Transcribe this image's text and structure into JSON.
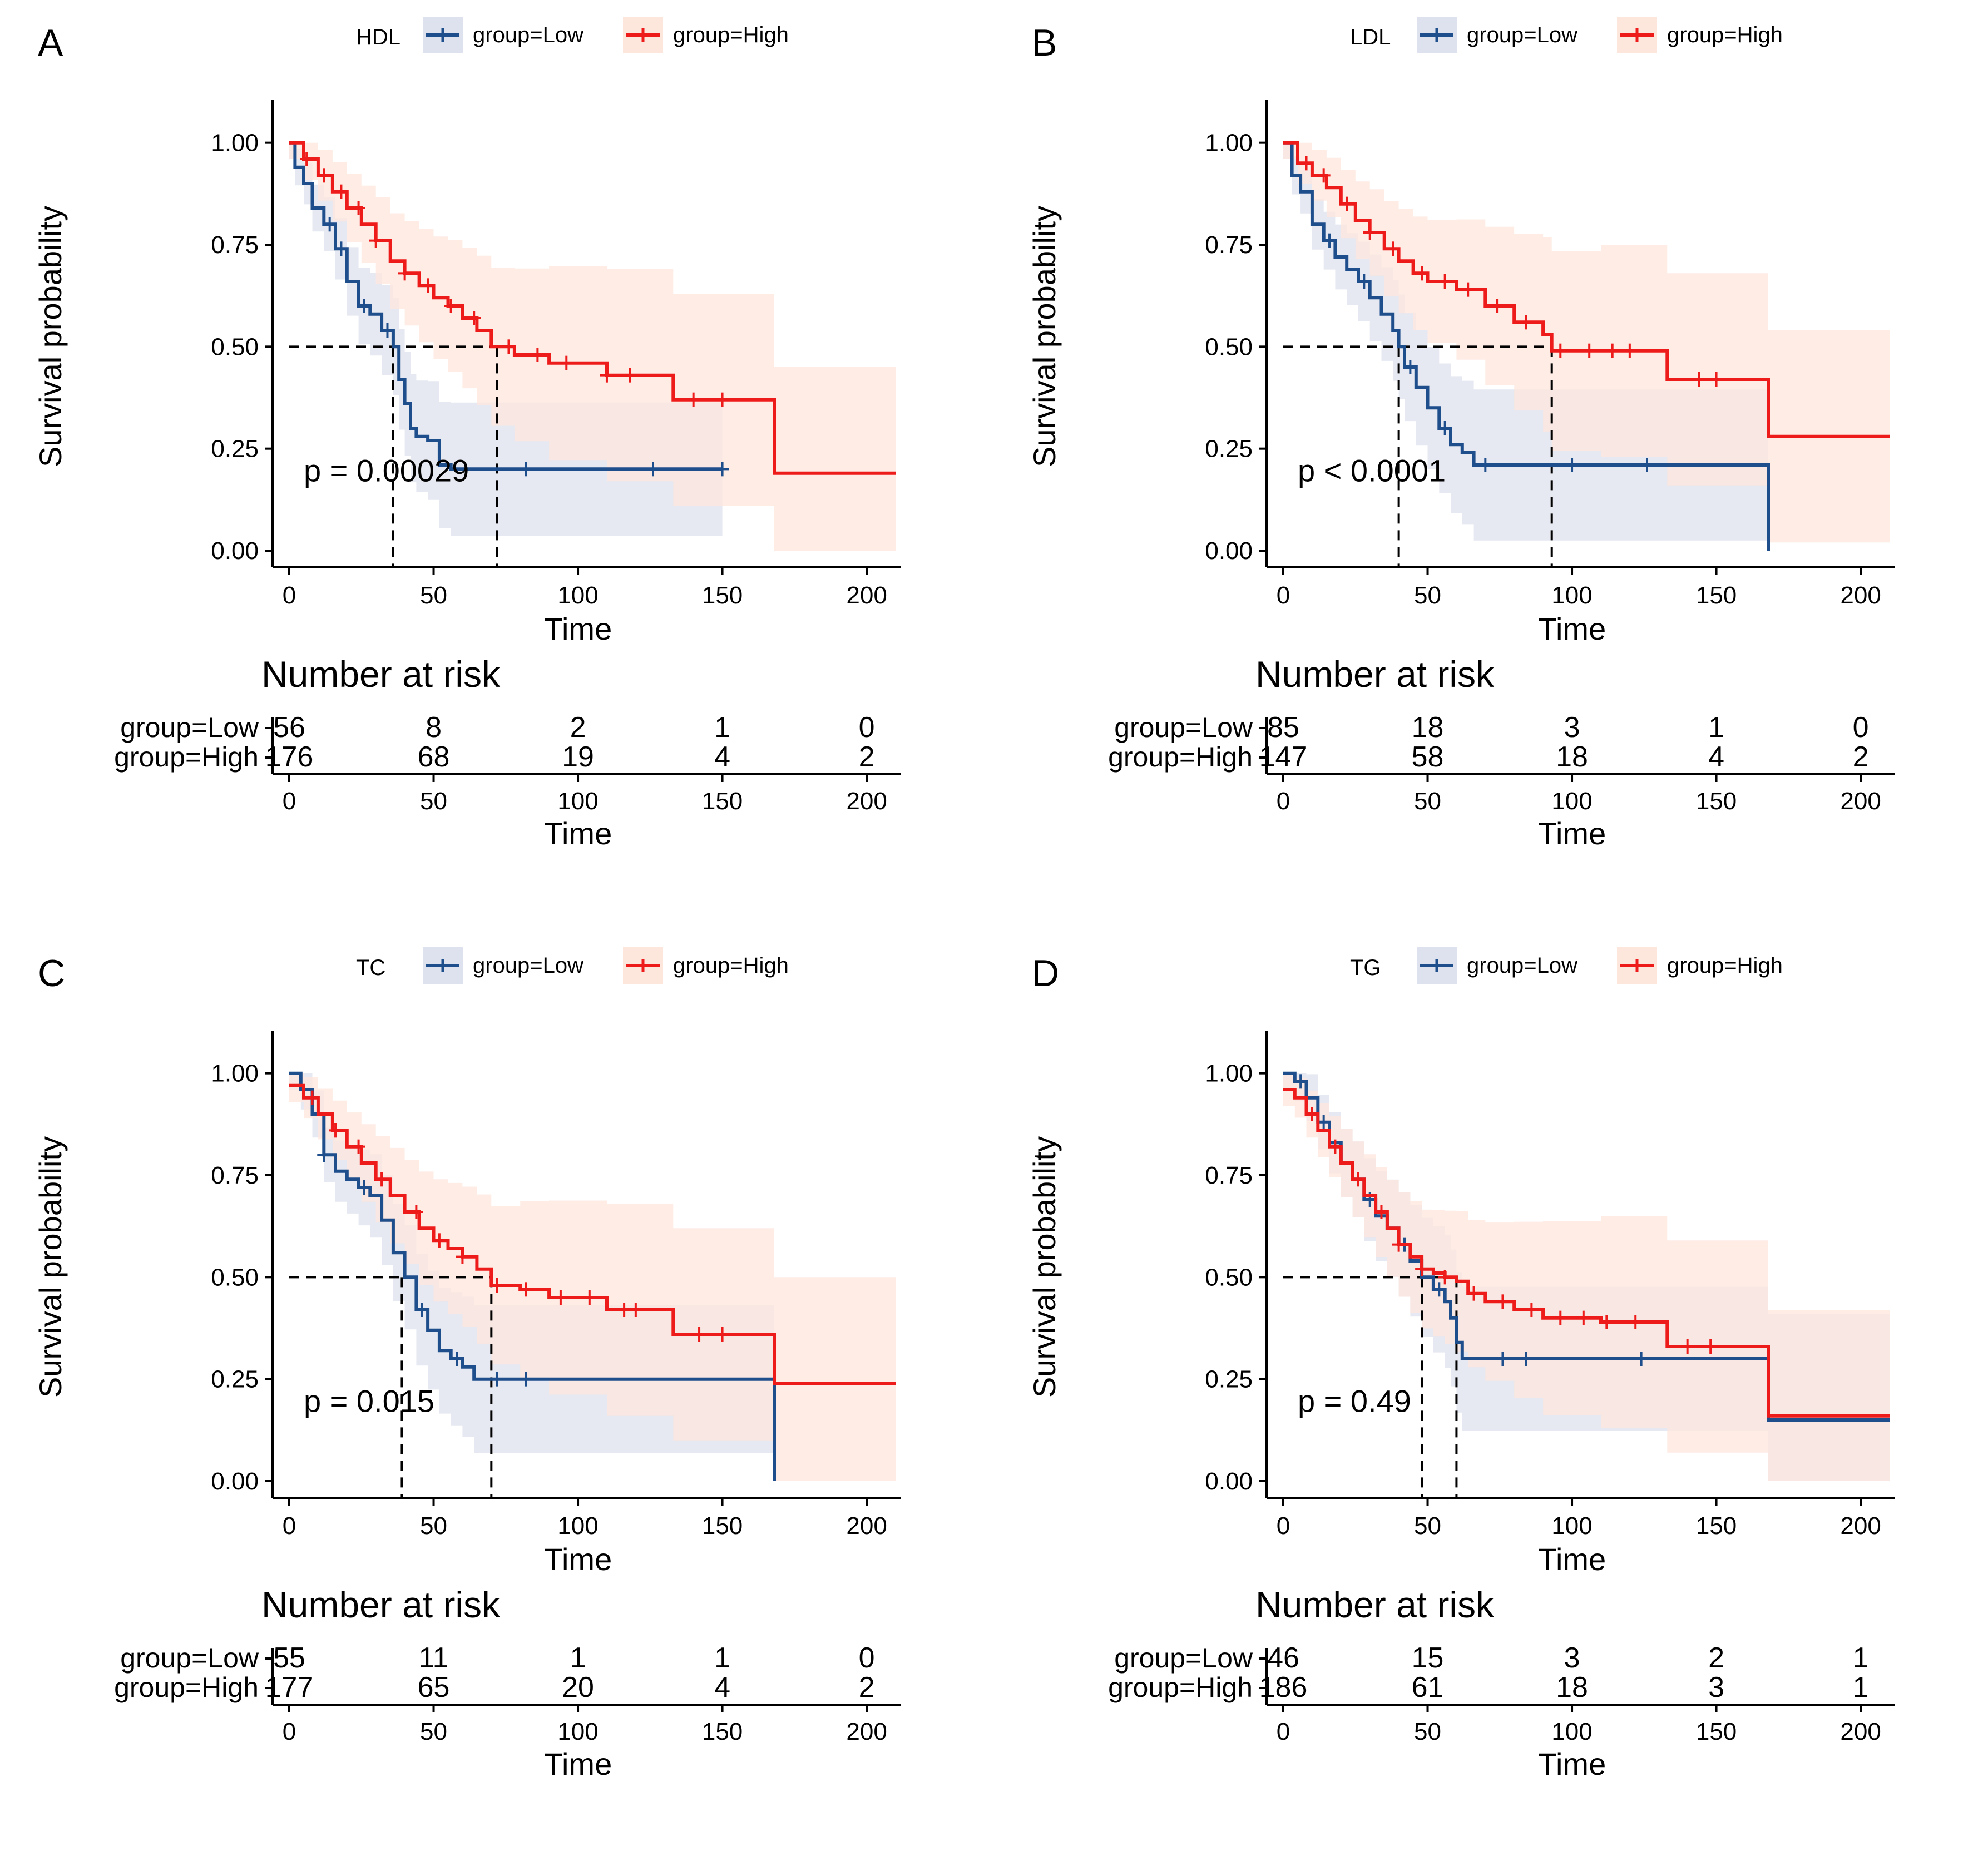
{
  "colors": {
    "low": "#1f4e8c",
    "high": "#ee1b1b",
    "low_band": "#dde2ee",
    "high_band": "#fde6dc"
  },
  "chart_data": [
    {
      "type": "line",
      "panel_label": "A",
      "variable": "HDL",
      "legend": [
        "group=Low",
        "group=High"
      ],
      "xlabel": "Time",
      "ylabel": "Survival probability",
      "xlim": [
        0,
        210
      ],
      "ylim": [
        0,
        1.05
      ],
      "x_ticks": [
        "0",
        "50",
        "100",
        "150",
        "200"
      ],
      "y_ticks": [
        "0.00",
        "0.25",
        "0.50",
        "0.75",
        "1.00"
      ],
      "p_value": "p = 0.00029",
      "medians": [
        36,
        72
      ],
      "series": [
        {
          "name": "group=Low",
          "x": [
            0,
            2,
            5,
            8,
            12,
            16,
            20,
            24,
            28,
            32,
            36,
            38,
            40,
            42,
            44,
            48,
            52,
            56,
            150
          ],
          "y": [
            1.0,
            0.94,
            0.9,
            0.84,
            0.8,
            0.74,
            0.66,
            0.6,
            0.58,
            0.54,
            0.5,
            0.42,
            0.36,
            0.3,
            0.28,
            0.27,
            0.21,
            0.2,
            0.2
          ],
          "censor": [
            14,
            18,
            26,
            34,
            82,
            126,
            150
          ]
        },
        {
          "name": "group=High",
          "x": [
            0,
            5,
            10,
            15,
            20,
            25,
            30,
            35,
            40,
            45,
            50,
            55,
            60,
            65,
            70,
            78,
            90,
            110,
            133,
            145,
            168,
            210
          ],
          "y": [
            1.0,
            0.96,
            0.92,
            0.88,
            0.84,
            0.8,
            0.76,
            0.71,
            0.68,
            0.65,
            0.62,
            0.6,
            0.57,
            0.54,
            0.5,
            0.48,
            0.46,
            0.43,
            0.37,
            0.37,
            0.19,
            0.19
          ],
          "censor": [
            6,
            12,
            18,
            24,
            30,
            40,
            48,
            56,
            64,
            76,
            86,
            96,
            110,
            118,
            140,
            150
          ]
        }
      ],
      "risk_table": {
        "title": "Number at risk",
        "times": [
          "0",
          "50",
          "100",
          "150",
          "200"
        ],
        "rows": [
          {
            "label": "group=Low",
            "values": [
              "56",
              "8",
              "2",
              "1",
              "0"
            ]
          },
          {
            "label": "group=High",
            "values": [
              "176",
              "68",
              "19",
              "4",
              "2"
            ]
          }
        ]
      }
    },
    {
      "type": "line",
      "panel_label": "B",
      "variable": "LDL",
      "legend": [
        "group=Low",
        "group=High"
      ],
      "xlabel": "Time",
      "ylabel": "Survival probability",
      "xlim": [
        0,
        210
      ],
      "ylim": [
        0,
        1.05
      ],
      "x_ticks": [
        "0",
        "50",
        "100",
        "150",
        "200"
      ],
      "y_ticks": [
        "0.00",
        "0.25",
        "0.50",
        "0.75",
        "1.00"
      ],
      "p_value": "p < 0.0001",
      "medians": [
        40,
        93
      ],
      "series": [
        {
          "name": "group=Low",
          "x": [
            0,
            3,
            6,
            10,
            14,
            18,
            22,
            26,
            30,
            34,
            38,
            40,
            42,
            46,
            50,
            54,
            58,
            62,
            66,
            168
          ],
          "y": [
            1.0,
            0.92,
            0.88,
            0.8,
            0.76,
            0.72,
            0.69,
            0.66,
            0.62,
            0.58,
            0.54,
            0.5,
            0.45,
            0.4,
            0.35,
            0.3,
            0.26,
            0.24,
            0.21,
            0.0
          ],
          "censor": [
            16,
            28,
            44,
            56,
            70,
            100,
            126
          ]
        },
        {
          "name": "group=High",
          "x": [
            0,
            5,
            10,
            15,
            20,
            25,
            30,
            35,
            40,
            45,
            50,
            60,
            70,
            80,
            90,
            93,
            110,
            133,
            150,
            168,
            210
          ],
          "y": [
            1.0,
            0.95,
            0.92,
            0.89,
            0.85,
            0.81,
            0.78,
            0.74,
            0.71,
            0.68,
            0.66,
            0.64,
            0.6,
            0.56,
            0.53,
            0.49,
            0.49,
            0.42,
            0.42,
            0.28,
            0.28
          ],
          "censor": [
            8,
            14,
            22,
            30,
            38,
            48,
            56,
            64,
            74,
            84,
            96,
            106,
            114,
            120,
            144,
            150
          ]
        }
      ],
      "risk_table": {
        "title": "Number at risk",
        "times": [
          "0",
          "50",
          "100",
          "150",
          "200"
        ],
        "rows": [
          {
            "label": "group=Low",
            "values": [
              "85",
              "18",
              "3",
              "1",
              "0"
            ]
          },
          {
            "label": "group=High",
            "values": [
              "147",
              "58",
              "18",
              "4",
              "2"
            ]
          }
        ]
      }
    },
    {
      "type": "line",
      "panel_label": "C",
      "variable": "TC",
      "legend": [
        "group=Low",
        "group=High"
      ],
      "xlabel": "Time",
      "ylabel": "Survival probability",
      "xlim": [
        0,
        210
      ],
      "ylim": [
        0,
        1.05
      ],
      "x_ticks": [
        "0",
        "50",
        "100",
        "150",
        "200"
      ],
      "y_ticks": [
        "0.00",
        "0.25",
        "0.50",
        "0.75",
        "1.00"
      ],
      "p_value": "p = 0.015",
      "medians": [
        39,
        70
      ],
      "series": [
        {
          "name": "group=Low",
          "x": [
            0,
            4,
            8,
            12,
            16,
            20,
            24,
            28,
            32,
            36,
            40,
            44,
            48,
            52,
            56,
            60,
            64,
            168
          ],
          "y": [
            1.0,
            0.96,
            0.9,
            0.8,
            0.76,
            0.74,
            0.72,
            0.7,
            0.64,
            0.56,
            0.5,
            0.42,
            0.37,
            0.32,
            0.3,
            0.28,
            0.25,
            0.0
          ],
          "censor": [
            12,
            26,
            46,
            58,
            72,
            82
          ]
        },
        {
          "name": "group=High",
          "x": [
            0,
            5,
            10,
            15,
            20,
            25,
            30,
            35,
            40,
            45,
            50,
            55,
            60,
            65,
            70,
            80,
            90,
            110,
            133,
            150,
            168,
            210
          ],
          "y": [
            0.97,
            0.94,
            0.9,
            0.86,
            0.82,
            0.78,
            0.74,
            0.7,
            0.66,
            0.62,
            0.59,
            0.57,
            0.55,
            0.52,
            0.48,
            0.47,
            0.45,
            0.42,
            0.36,
            0.36,
            0.24,
            0.24
          ],
          "censor": [
            8,
            16,
            24,
            32,
            44,
            52,
            60,
            72,
            82,
            94,
            104,
            116,
            120,
            142,
            150
          ]
        }
      ],
      "risk_table": {
        "title": "Number at risk",
        "times": [
          "0",
          "50",
          "100",
          "150",
          "200"
        ],
        "rows": [
          {
            "label": "group=Low",
            "values": [
              "55",
              "11",
              "1",
              "1",
              "0"
            ]
          },
          {
            "label": "group=High",
            "values": [
              "177",
              "65",
              "20",
              "4",
              "2"
            ]
          }
        ]
      }
    },
    {
      "type": "line",
      "panel_label": "D",
      "variable": "TG",
      "legend": [
        "group=Low",
        "group=High"
      ],
      "xlabel": "Time",
      "ylabel": "Survival probability",
      "xlim": [
        0,
        210
      ],
      "ylim": [
        0,
        1.05
      ],
      "x_ticks": [
        "0",
        "50",
        "100",
        "150",
        "200"
      ],
      "y_ticks": [
        "0.00",
        "0.25",
        "0.50",
        "0.75",
        "1.00"
      ],
      "p_value": "p = 0.49",
      "medians": [
        48,
        60
      ],
      "series": [
        {
          "name": "group=Low",
          "x": [
            0,
            4,
            8,
            12,
            16,
            20,
            24,
            28,
            32,
            36,
            40,
            44,
            48,
            52,
            56,
            58,
            60,
            62,
            168,
            210
          ],
          "y": [
            1.0,
            0.98,
            0.94,
            0.88,
            0.83,
            0.78,
            0.74,
            0.69,
            0.65,
            0.62,
            0.58,
            0.54,
            0.5,
            0.47,
            0.44,
            0.4,
            0.34,
            0.3,
            0.15,
            0.15
          ],
          "censor": [
            6,
            14,
            30,
            42,
            54,
            76,
            84,
            124
          ]
        },
        {
          "name": "group=High",
          "x": [
            0,
            4,
            8,
            12,
            16,
            20,
            24,
            28,
            32,
            36,
            40,
            44,
            48,
            52,
            56,
            60,
            64,
            70,
            80,
            90,
            110,
            133,
            150,
            168,
            210
          ],
          "y": [
            0.96,
            0.94,
            0.9,
            0.86,
            0.82,
            0.78,
            0.74,
            0.7,
            0.66,
            0.62,
            0.58,
            0.55,
            0.52,
            0.51,
            0.5,
            0.49,
            0.46,
            0.44,
            0.42,
            0.4,
            0.39,
            0.33,
            0.33,
            0.16,
            0.16
          ],
          "censor": [
            10,
            18,
            26,
            34,
            40,
            48,
            56,
            66,
            76,
            86,
            96,
            104,
            112,
            122,
            140,
            148
          ]
        }
      ],
      "risk_table": {
        "title": "Number at risk",
        "times": [
          "0",
          "50",
          "100",
          "150",
          "200"
        ],
        "rows": [
          {
            "label": "group=Low",
            "values": [
              "46",
              "15",
              "3",
              "2",
              "1"
            ]
          },
          {
            "label": "group=High",
            "values": [
              "186",
              "61",
              "18",
              "3",
              "1"
            ]
          }
        ]
      }
    }
  ]
}
